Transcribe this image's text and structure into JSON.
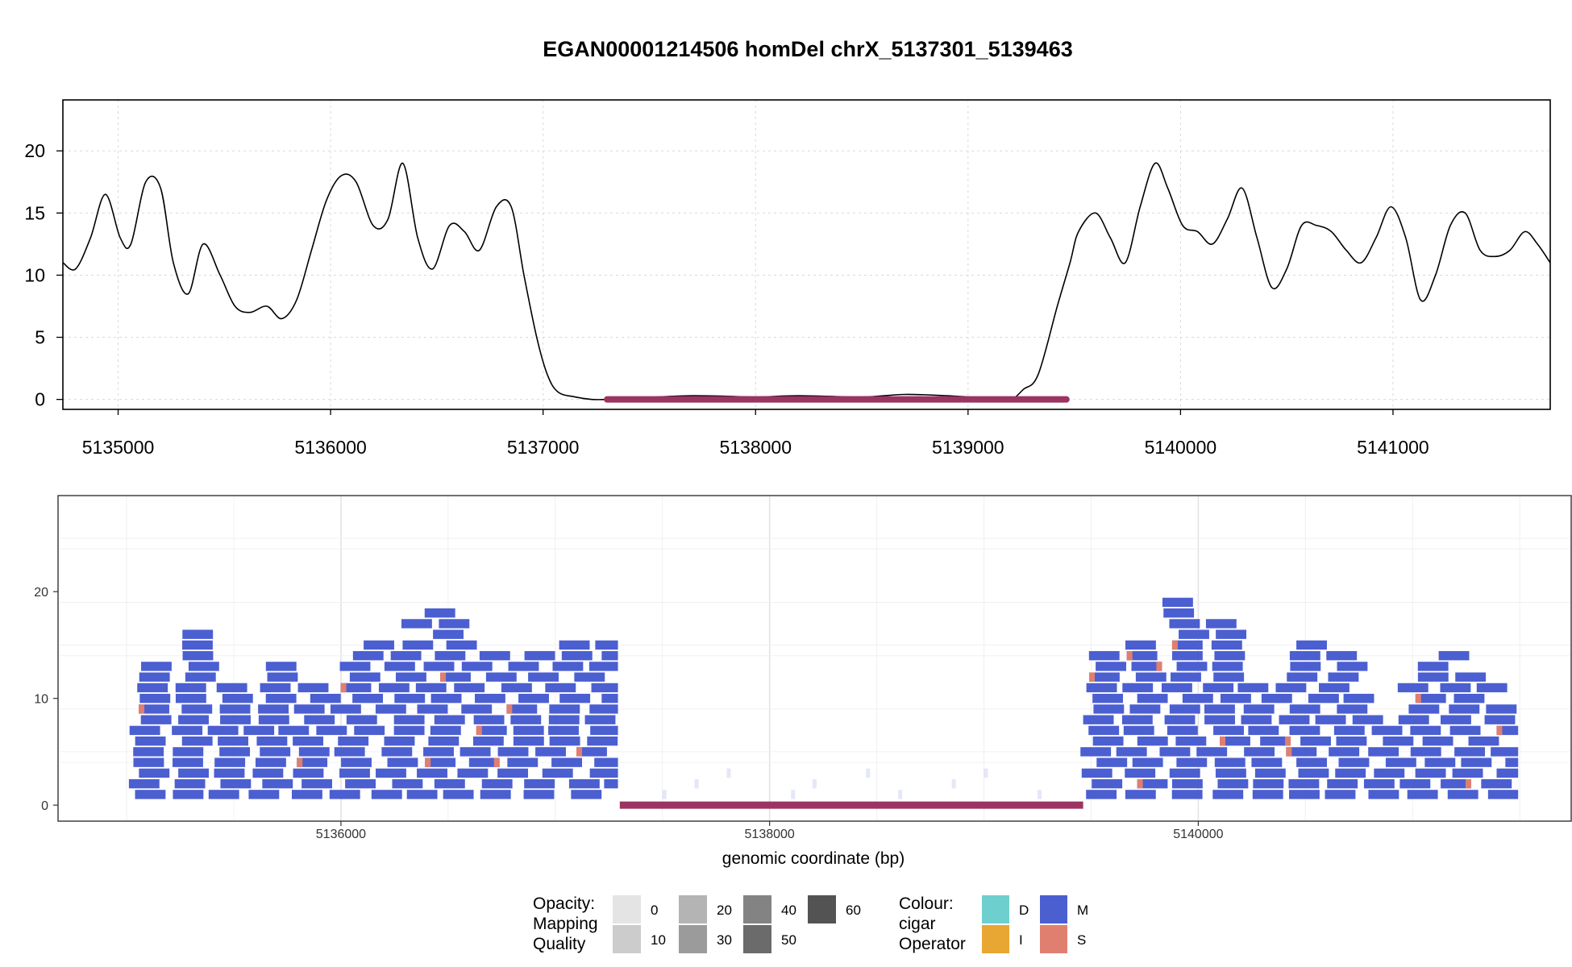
{
  "chart_data": [
    {
      "type": "line",
      "title": "EGAN00001214506 homDel chrX_5137301_5139463",
      "xlim": [
        5134740,
        5141740
      ],
      "ylim": [
        -0.8,
        24.1
      ],
      "x_ticks": [
        "5135000",
        "5136000",
        "5137000",
        "5138000",
        "5139000",
        "5140000",
        "5141000"
      ],
      "y_ticks": [
        "0",
        "5",
        "10",
        "15",
        "20"
      ],
      "grid": true,
      "series": [
        {
          "x": [
            5134740,
            5134800,
            5134870,
            5134940,
            5135010,
            5135060,
            5135130,
            5135200,
            5135260,
            5135330,
            5135400,
            5135480,
            5135550,
            5135620,
            5135700,
            5135770,
            5135840,
            5135910,
            5135980,
            5136050,
            5136120,
            5136200,
            5136270,
            5136340,
            5136410,
            5136480,
            5136560,
            5136630,
            5136700,
            5136780,
            5136850,
            5136910,
            5136970,
            5137020,
            5137070,
            5137150,
            5137230,
            5137300,
            5137360,
            5137430,
            5137700,
            5138000,
            5138200,
            5138500,
            5138700,
            5138900,
            5139100,
            5139200,
            5139260,
            5139330,
            5139420,
            5139480,
            5139520,
            5139600,
            5139670,
            5139740,
            5139810,
            5139880,
            5139940,
            5140010,
            5140080,
            5140150,
            5140220,
            5140290,
            5140360,
            5140430,
            5140500,
            5140570,
            5140640,
            5140710,
            5140780,
            5140850,
            5140920,
            5140990,
            5141060,
            5141130,
            5141200,
            5141270,
            5141340,
            5141410,
            5141480,
            5141550,
            5141620,
            5141680,
            5141740
          ],
          "y": [
            11,
            10.5,
            13,
            16.5,
            13,
            12.5,
            17.5,
            17,
            11,
            8.5,
            12.5,
            10,
            7.5,
            7,
            7.5,
            6.5,
            8,
            12,
            16,
            18,
            17.5,
            14,
            14.5,
            19,
            13,
            10.5,
            14,
            13.5,
            12,
            15.5,
            15.5,
            10,
            5,
            2,
            0.6,
            0.2,
            0,
            0,
            0,
            0.1,
            0.3,
            0.2,
            0.3,
            0.2,
            0.4,
            0.3,
            0.1,
            0,
            0.8,
            2,
            7.5,
            11,
            13.5,
            15,
            13,
            11,
            15.5,
            19,
            17,
            14,
            13.5,
            12.5,
            14.5,
            17,
            13,
            9,
            10.5,
            14,
            14,
            13.5,
            12,
            11,
            13,
            15.5,
            13,
            8,
            10,
            14,
            15,
            12,
            11.5,
            12,
            13.5,
            12.5,
            11
          ]
        }
      ],
      "deletion_interval": [
        5137301,
        5139463
      ]
    },
    {
      "type": "bar",
      "xlabel": "genomic coordinate (bp)",
      "xlim": [
        5134680,
        5141740
      ],
      "ylim": [
        -1.5,
        29
      ],
      "x_ticks": [
        "5136000",
        "5138000",
        "5140000"
      ],
      "y_ticks": [
        "0",
        "10",
        "20"
      ],
      "grid": true,
      "deletion_interval": [
        5137301,
        5139463
      ],
      "coverage_profile": {
        "x": [
          5135000,
          5135100,
          5135200,
          5135300,
          5135400,
          5135500,
          5135600,
          5135700,
          5135800,
          5135900,
          5136000,
          5136100,
          5136200,
          5136300,
          5136400,
          5136500,
          5136600,
          5136700,
          5136800,
          5136900,
          5137000,
          5137100,
          5137200,
          5137300,
          5139450,
          5139550,
          5139650,
          5139750,
          5139850,
          5139950,
          5140050,
          5140150,
          5140250,
          5140350,
          5140450,
          5140550,
          5140650,
          5140750,
          5140850,
          5140950,
          5141050,
          5141150,
          5141250,
          5141350,
          5141450,
          5141500
        ],
        "y": [
          13,
          10,
          18,
          17,
          16,
          13,
          8,
          15,
          9,
          12,
          10,
          14,
          20,
          16,
          21,
          18,
          19,
          14,
          12,
          15,
          13,
          17,
          19,
          12,
          7,
          13,
          19,
          15,
          21,
          18,
          14,
          20,
          13,
          9,
          14,
          15,
          16,
          12,
          8,
          10,
          14,
          15,
          14,
          12,
          8,
          6
        ]
      },
      "legend_opacity": {
        "title": "Opacity:\nMapping\nQuality",
        "title_lines": [
          "Opacity:",
          "Mapping",
          "Quality"
        ],
        "levels": [
          "0",
          "10",
          "20",
          "30",
          "40",
          "50",
          "60"
        ]
      },
      "legend_colour": {
        "title_lines": [
          "Colour:",
          "cigar",
          "Operator"
        ],
        "entries": [
          {
            "label": "D",
            "color": "#6ecfcf"
          },
          {
            "label": "I",
            "color": "#e8a632"
          },
          {
            "label": "M",
            "color": "#4b5fd1"
          },
          {
            "label": "S",
            "color": "#e07f6f"
          }
        ]
      }
    }
  ]
}
